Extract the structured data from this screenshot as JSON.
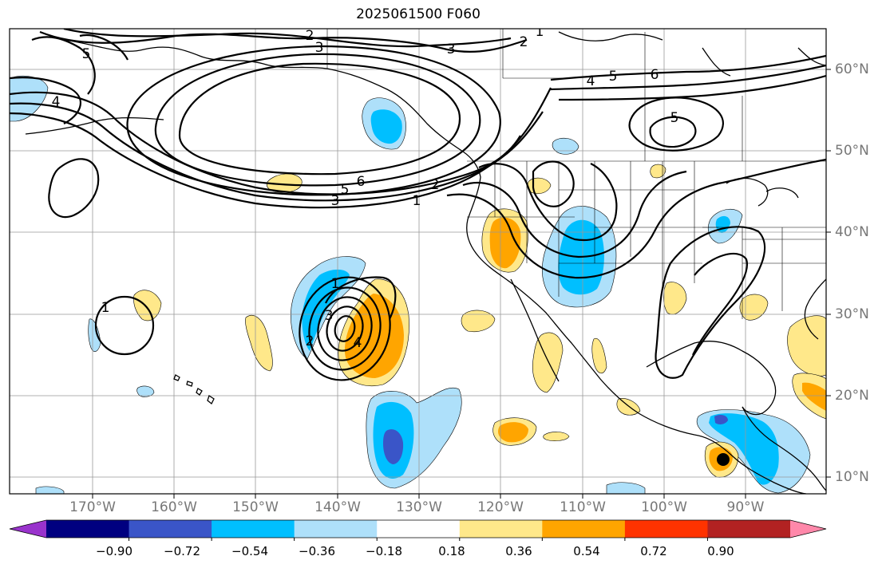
{
  "title": "2025061500 F060",
  "longitude_labels": [
    "170°W",
    "160°W",
    "150°W",
    "140°W",
    "130°W",
    "120°W",
    "110°W",
    "100°W",
    "90°W"
  ],
  "latitude_labels": [
    "60°N",
    "50°N",
    "40°N",
    "30°N",
    "20°N",
    "10°N"
  ],
  "colorbar": {
    "tick_labels": [
      "−0.90",
      "−0.72",
      "−0.54",
      "−0.36",
      "−0.18",
      "0.18",
      "0.36",
      "0.54",
      "0.72",
      "0.90"
    ],
    "colors": [
      "#9933cc",
      "#000080",
      "#3a55c8",
      "#00bfff",
      "#aee0fa",
      "#ffffff",
      "#ffe88a",
      "#ffa500",
      "#ff3300",
      "#b22222",
      "#ff88aa"
    ]
  },
  "contour_labels": [
    {
      "text": "2"
    },
    {
      "text": "3"
    },
    {
      "text": "3"
    },
    {
      "text": "2"
    },
    {
      "text": "1"
    },
    {
      "text": "4"
    },
    {
      "text": "5"
    },
    {
      "text": "6"
    },
    {
      "text": "5"
    },
    {
      "text": "6"
    },
    {
      "text": "5"
    },
    {
      "text": "3"
    },
    {
      "text": "1"
    },
    {
      "text": "2"
    },
    {
      "text": "4"
    },
    {
      "text": "1"
    },
    {
      "text": "1"
    },
    {
      "text": "3"
    },
    {
      "text": "2"
    },
    {
      "text": "4"
    },
    {
      "text": "5"
    }
  ]
}
